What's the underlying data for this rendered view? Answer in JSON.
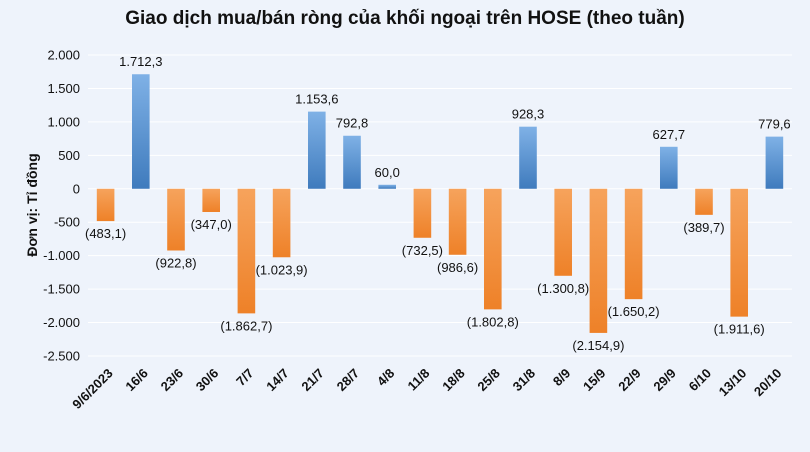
{
  "chart_data": {
    "type": "bar",
    "title": "Giao dịch mua/bán ròng của khối ngoại trên HOSE (theo tuần)",
    "ylabel": "Đơn vị: Tỉ đồng",
    "xlabel": "",
    "ylim": [
      -2500,
      2000
    ],
    "yticks": [
      2000,
      1500,
      1000,
      500,
      0,
      -500,
      -1000,
      -1500,
      -2000,
      -2500
    ],
    "ytick_labels": [
      "2.000",
      "1.500",
      "1.000",
      "500",
      "0",
      "-500",
      "-1.000",
      "-1.500",
      "-2.000",
      "-2.500"
    ],
    "categories": [
      "9/6/2023",
      "16/6",
      "23/6",
      "30/6",
      "7/7",
      "14/7",
      "21/7",
      "28/7",
      "4/8",
      "11/8",
      "18/8",
      "25/8",
      "31/8",
      "8/9",
      "15/9",
      "22/9",
      "29/9",
      "6/10",
      "13/10",
      "20/10"
    ],
    "values": [
      -483.1,
      1712.3,
      -922.8,
      -347.0,
      -1862.7,
      -1023.9,
      1153.6,
      792.8,
      60.0,
      -732.5,
      -986.6,
      -1802.8,
      928.3,
      -1300.8,
      -2154.9,
      -1650.2,
      627.7,
      -389.7,
      -1911.6,
      779.6
    ],
    "value_labels": [
      "(483,1)",
      "1.712,3",
      "(922,8)",
      "(347,0)",
      "(1.862,7)",
      "(1.023,9)",
      "1.153,6",
      "792,8",
      "60,0",
      "(732,5)",
      "(986,6)",
      "(1.802,8)",
      "928,3",
      "(1.300,8)",
      "(2.154,9)",
      "(1.650,2)",
      "627,7",
      "(389,7)",
      "(1.911,6)",
      "779,6"
    ],
    "colors": {
      "positive": "#4a86c8",
      "negative": "#f08a33",
      "background": "#eef3fb",
      "grid": "#ffffff"
    },
    "grid": true,
    "legend": "none"
  }
}
